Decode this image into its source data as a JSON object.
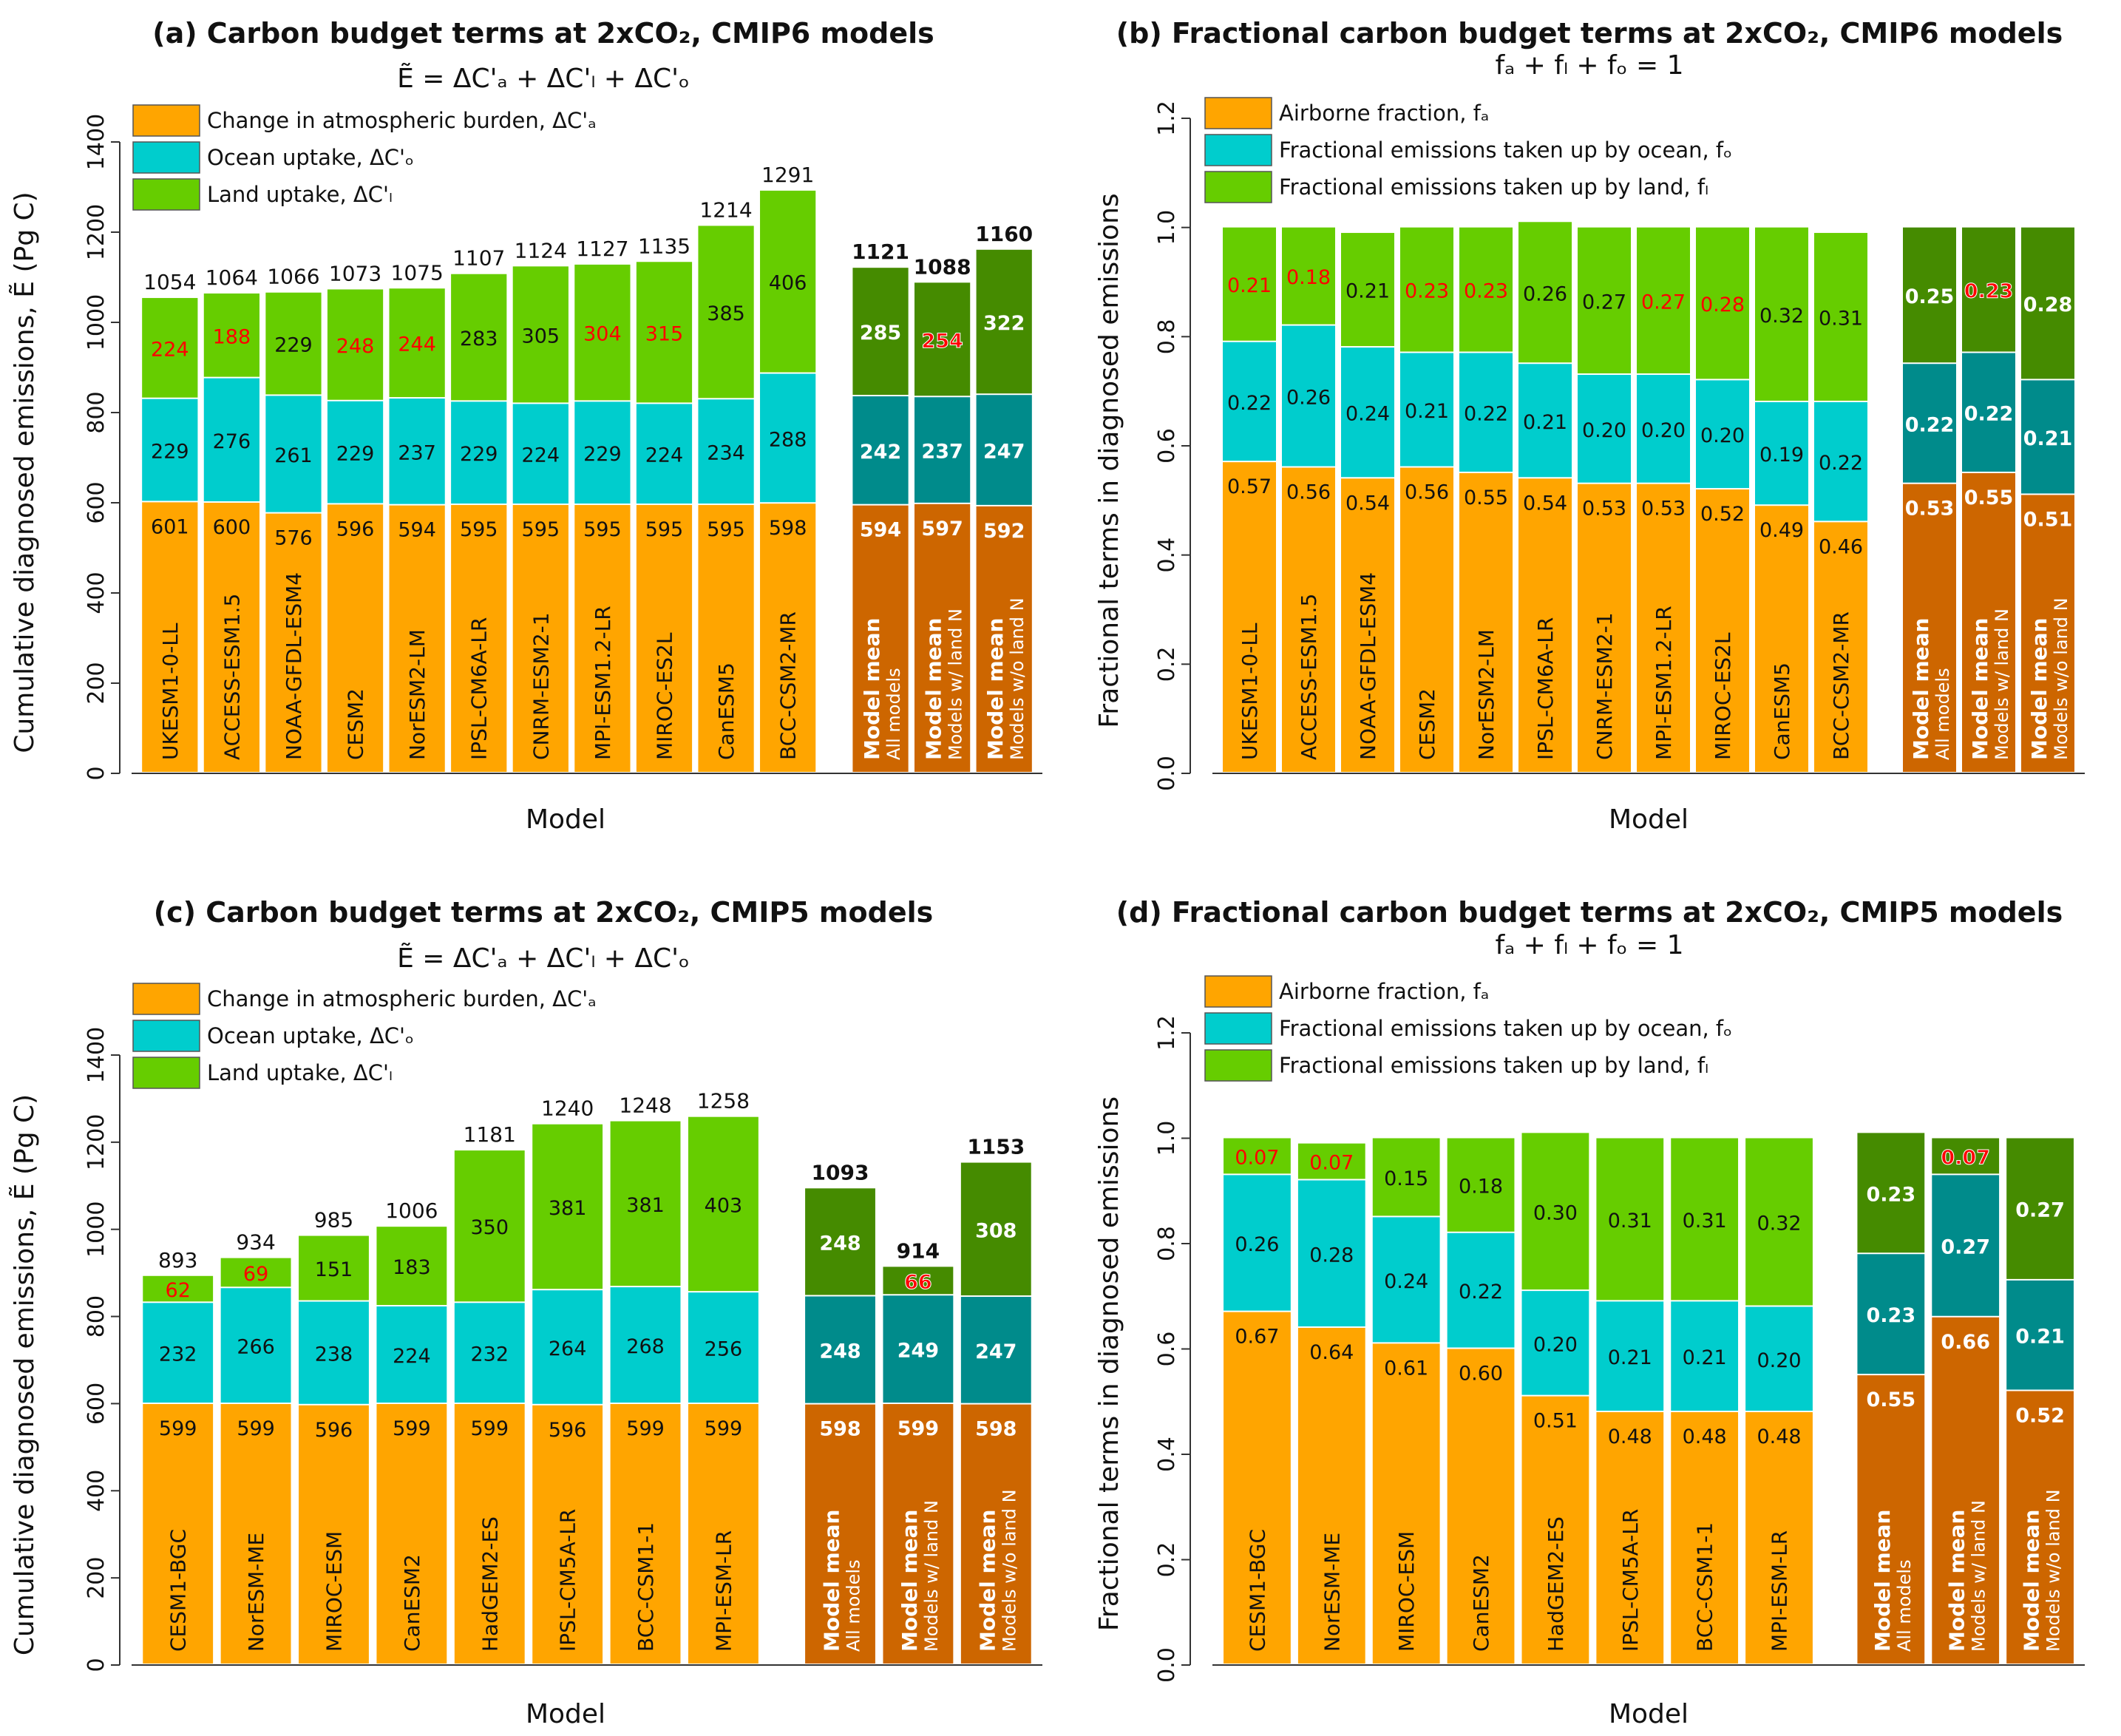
{
  "colors": {
    "atmos": "#FFA500",
    "ocean": "#00CDCD",
    "land": "#66CD00",
    "atmos_mean": "#CD6600",
    "ocean_mean": "#008B8B",
    "land_mean": "#458B00",
    "highlight": "#FF0000",
    "text": "#111111"
  },
  "chart_data": [
    {
      "id": "a",
      "type": "bar",
      "stacked": true,
      "title": "(a) Carbon budget terms at 2xCO₂, CMIP6 models",
      "subtitle": "Ẽ = ΔC'ₐ + ΔC'ₗ + ΔC'ₒ",
      "xlabel": "Model",
      "ylabel": "Cumulative diagnosed emissions, Ẽ (Pg C)",
      "ylim": [
        0,
        1400
      ],
      "yticks": [
        "0",
        "200",
        "400",
        "600",
        "800",
        "1000",
        "1200",
        "1400"
      ],
      "ytick_values": [
        0,
        200,
        400,
        600,
        800,
        1000,
        1200,
        1400
      ],
      "legend": [
        "Change in atmospheric burden, ΔC'ₐ",
        "Ocean uptake, ΔC'ₒ",
        "Land uptake, ΔC'ₗ"
      ],
      "legend_position": "top-left",
      "value_format": "int",
      "categories": [
        "UKESM1-0-LL",
        "ACCESS-ESM1.5",
        "NOAA-GFDL-ESM4",
        "CESM2",
        "NorESM2-LM",
        "IPSL-CM6A-LR",
        "CNRM-ESM2-1",
        "MPI-ESM1.2-LR",
        "MIROC-ES2L",
        "CanESM5",
        "BCC-CSM2-MR"
      ],
      "series": [
        {
          "name": "Change in atmospheric burden",
          "values": [
            601,
            600,
            576,
            596,
            594,
            595,
            595,
            595,
            595,
            595,
            598
          ]
        },
        {
          "name": "Ocean uptake",
          "values": [
            229,
            276,
            261,
            229,
            237,
            229,
            224,
            229,
            224,
            234,
            288
          ]
        },
        {
          "name": "Land uptake",
          "values": [
            224,
            188,
            229,
            248,
            244,
            283,
            305,
            304,
            315,
            385,
            406
          ]
        }
      ],
      "totals": [
        1054,
        1064,
        1066,
        1073,
        1075,
        1107,
        1124,
        1127,
        1135,
        1214,
        1291
      ],
      "land_highlight": [
        true,
        true,
        false,
        true,
        true,
        false,
        false,
        true,
        true,
        false,
        false
      ],
      "means": [
        {
          "line1": "Model mean",
          "line2": "All models",
          "values": [
            594,
            242,
            285
          ],
          "total": 1121,
          "land_highlight": false
        },
        {
          "line1": "Model mean",
          "line2": "Models w/ land N",
          "values": [
            597,
            237,
            254
          ],
          "total": 1088,
          "land_highlight": true
        },
        {
          "line1": "Model mean",
          "line2": "Models w/o land N",
          "values": [
            592,
            247,
            322
          ],
          "total": 1160,
          "land_highlight": false
        }
      ]
    },
    {
      "id": "b",
      "type": "bar",
      "stacked": true,
      "title": "(b) Fractional carbon budget terms at 2xCO₂, CMIP6 models",
      "subtitle": "fₐ + fₗ + fₒ = 1",
      "xlabel": "Model",
      "ylabel": "Fractional terms in diagnosed emissions",
      "ylim": [
        0,
        1.2
      ],
      "yticks": [
        "0.0",
        "0.2",
        "0.4",
        "0.6",
        "0.8",
        "1.0",
        "1.2"
      ],
      "ytick_values": [
        0,
        0.2,
        0.4,
        0.6,
        0.8,
        1.0,
        1.2
      ],
      "legend": [
        "Airborne fraction, fₐ",
        "Fractional emissions taken up by ocean, fₒ",
        "Fractional emissions taken up by land, fₗ"
      ],
      "legend_position": "top-left",
      "value_format": "frac",
      "categories": [
        "UKESM1-0-LL",
        "ACCESS-ESM1.5",
        "NOAA-GFDL-ESM4",
        "CESM2",
        "NorESM2-LM",
        "IPSL-CM6A-LR",
        "CNRM-ESM2-1",
        "MPI-ESM1.2-LR",
        "MIROC-ES2L",
        "CanESM5",
        "BCC-CSM2-MR"
      ],
      "series": [
        {
          "name": "Airborne fraction",
          "values": [
            0.57,
            0.56,
            0.54,
            0.56,
            0.55,
            0.54,
            0.53,
            0.53,
            0.52,
            0.49,
            0.46
          ]
        },
        {
          "name": "Ocean fraction",
          "values": [
            0.22,
            0.26,
            0.24,
            0.21,
            0.22,
            0.21,
            0.2,
            0.2,
            0.2,
            0.19,
            0.22
          ]
        },
        {
          "name": "Land fraction",
          "values": [
            0.21,
            0.18,
            0.21,
            0.23,
            0.23,
            0.26,
            0.27,
            0.27,
            0.28,
            0.32,
            0.31
          ]
        }
      ],
      "land_highlight": [
        true,
        true,
        false,
        true,
        true,
        false,
        false,
        true,
        true,
        false,
        false
      ],
      "means": [
        {
          "line1": "Model mean",
          "line2": "All models",
          "values": [
            0.53,
            0.22,
            0.25
          ],
          "land_highlight": false
        },
        {
          "line1": "Model mean",
          "line2": "Models w/ land N",
          "values": [
            0.55,
            0.22,
            0.23
          ],
          "land_highlight": true
        },
        {
          "line1": "Model mean",
          "line2": "Models w/o land N",
          "values": [
            0.51,
            0.21,
            0.28
          ],
          "land_highlight": false
        }
      ]
    },
    {
      "id": "c",
      "type": "bar",
      "stacked": true,
      "title": "(c) Carbon budget terms at 2xCO₂, CMIP5 models",
      "subtitle": "Ẽ = ΔC'ₐ + ΔC'ₗ + ΔC'ₒ",
      "xlabel": "Model",
      "ylabel": "Cumulative diagnosed emissions, Ẽ (Pg C)",
      "ylim": [
        0,
        1400
      ],
      "yticks": [
        "0",
        "200",
        "400",
        "600",
        "800",
        "1000",
        "1200",
        "1400"
      ],
      "ytick_values": [
        0,
        200,
        400,
        600,
        800,
        1000,
        1200,
        1400
      ],
      "legend": [
        "Change in atmospheric burden, ΔC'ₐ",
        "Ocean uptake, ΔC'ₒ",
        "Land uptake, ΔC'ₗ"
      ],
      "legend_position": "top-left",
      "value_format": "int",
      "categories": [
        "CESM1-BGC",
        "NorESM-ME",
        "MIROC-ESM",
        "CanESM2",
        "HadGEM2-ES",
        "IPSL-CM5A-LR",
        "BCC-CSM1-1",
        "MPI-ESM-LR"
      ],
      "series": [
        {
          "name": "Change in atmospheric burden",
          "values": [
            599,
            599,
            596,
            599,
            599,
            596,
            599,
            599
          ]
        },
        {
          "name": "Ocean uptake",
          "values": [
            232,
            266,
            238,
            224,
            232,
            264,
            268,
            256
          ]
        },
        {
          "name": "Land uptake",
          "values": [
            62,
            69,
            151,
            183,
            350,
            381,
            381,
            403
          ]
        }
      ],
      "totals": [
        893,
        934,
        985,
        1006,
        1181,
        1240,
        1248,
        1258
      ],
      "land_highlight": [
        true,
        true,
        false,
        false,
        false,
        false,
        false,
        false
      ],
      "means": [
        {
          "line1": "Model mean",
          "line2": "All models",
          "values": [
            598,
            248,
            248
          ],
          "total": 1093,
          "land_highlight": false
        },
        {
          "line1": "Model mean",
          "line2": "Models w/ land N",
          "values": [
            599,
            249,
            66
          ],
          "total": 914,
          "land_highlight": true
        },
        {
          "line1": "Model mean",
          "line2": "Models w/o land N",
          "values": [
            598,
            247,
            308
          ],
          "total": 1153,
          "land_highlight": false
        }
      ]
    },
    {
      "id": "d",
      "type": "bar",
      "stacked": true,
      "title": "(d) Fractional carbon budget terms at 2xCO₂, CMIP5 models",
      "subtitle": "fₐ + fₗ + fₒ = 1",
      "xlabel": "Model",
      "ylabel": "Fractional terms in diagnosed emissions",
      "ylim": [
        0,
        1.2
      ],
      "yticks": [
        "0.0",
        "0.2",
        "0.4",
        "0.6",
        "0.8",
        "1.0",
        "1.2"
      ],
      "ytick_values": [
        0,
        0.2,
        0.4,
        0.6,
        0.8,
        1.0,
        1.2
      ],
      "legend": [
        "Airborne fraction, fₐ",
        "Fractional emissions taken up by ocean, fₒ",
        "Fractional emissions taken up by land, fₗ"
      ],
      "legend_position": "top-left",
      "value_format": "frac",
      "categories": [
        "CESM1-BGC",
        "NorESM-ME",
        "MIROC-ESM",
        "CanESM2",
        "HadGEM2-ES",
        "IPSL-CM5A-LR",
        "BCC-CSM1-1",
        "MPI-ESM-LR"
      ],
      "series": [
        {
          "name": "Airborne fraction",
          "values": [
            0.67,
            0.64,
            0.61,
            0.6,
            0.51,
            0.48,
            0.48,
            0.48
          ]
        },
        {
          "name": "Ocean fraction",
          "values": [
            0.26,
            0.28,
            0.24,
            0.22,
            0.2,
            0.21,
            0.21,
            0.2
          ]
        },
        {
          "name": "Land fraction",
          "values": [
            0.07,
            0.07,
            0.15,
            0.18,
            0.3,
            0.31,
            0.31,
            0.32
          ]
        }
      ],
      "land_highlight": [
        true,
        true,
        false,
        false,
        false,
        false,
        false,
        false
      ],
      "means": [
        {
          "line1": "Model mean",
          "line2": "All models",
          "values": [
            0.55,
            0.23,
            0.23
          ],
          "land_highlight": false
        },
        {
          "line1": "Model mean",
          "line2": "Models w/ land N",
          "values": [
            0.66,
            0.27,
            0.07
          ],
          "land_highlight": true
        },
        {
          "line1": "Model mean",
          "line2": "Models w/o land N",
          "values": [
            0.52,
            0.21,
            0.27
          ],
          "land_highlight": false
        }
      ]
    }
  ]
}
